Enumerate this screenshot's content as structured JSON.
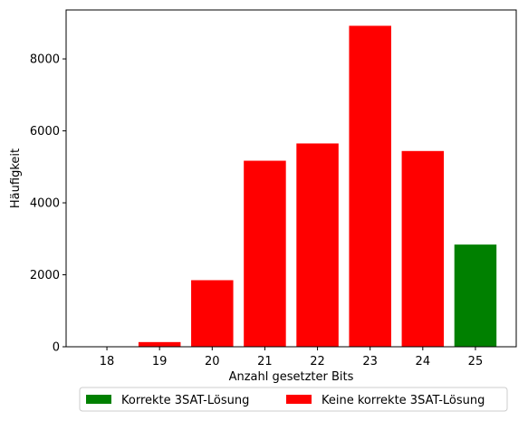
{
  "chart_data": {
    "type": "bar",
    "categories": [
      "18",
      "19",
      "20",
      "21",
      "22",
      "23",
      "24",
      "25"
    ],
    "series": [
      {
        "name": "Korrekte 3SAT-Lösung",
        "color": "#008000",
        "values": [
          0,
          0,
          0,
          0,
          0,
          0,
          0,
          2840
        ]
      },
      {
        "name": "Keine korrekte 3SAT-Lösung",
        "color": "#ff0000",
        "values": [
          5,
          130,
          1850,
          5170,
          5650,
          8920,
          5440,
          0
        ]
      }
    ],
    "xlabel": "Anzahl gesetzter Bits",
    "ylabel": "Häufigkeit",
    "ylim": [
      0,
      9360
    ],
    "yticks": [
      0,
      2000,
      4000,
      6000,
      8000
    ],
    "ytick_labels": [
      "0",
      "2000",
      "4000",
      "6000",
      "8000"
    ],
    "grid": false,
    "legend_position": "bottom-center"
  }
}
